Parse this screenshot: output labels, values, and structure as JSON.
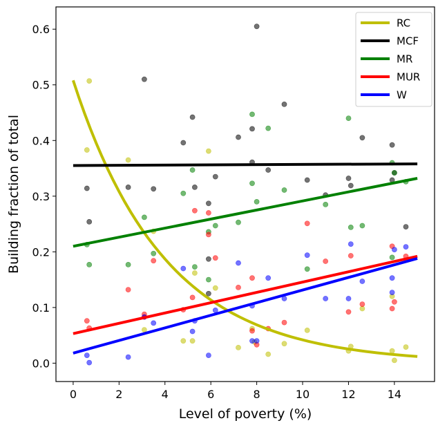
{
  "chart_data": {
    "type": "scatter",
    "title": "",
    "xlabel": "Level of poverty (%)",
    "ylabel": "Building fraction of total",
    "xlim": [
      -0.75,
      15.75
    ],
    "ylim": [
      -0.033,
      0.64
    ],
    "xticks": [
      0,
      2,
      4,
      6,
      8,
      10,
      12,
      14
    ],
    "yticks": [
      0.0,
      0.1,
      0.2,
      0.3,
      0.4,
      0.5,
      0.6
    ],
    "xtick_labels": [
      "0",
      "2",
      "4",
      "6",
      "8",
      "10",
      "12",
      "14"
    ],
    "ytick_labels": [
      "0.0",
      "0.1",
      "0.2",
      "0.3",
      "0.4",
      "0.5",
      "0.6"
    ],
    "legend_position": "top-right",
    "grid": false,
    "series": [
      {
        "name": "RC",
        "color": "#bfbf00",
        "fit": "exponential",
        "fit_start": 0.508,
        "fit_end": 0.012,
        "points": [
          [
            0.7,
            0.507
          ],
          [
            0.6,
            0.383
          ],
          [
            2.4,
            0.365
          ],
          [
            3.5,
            0.237
          ],
          [
            5.3,
            0.162
          ],
          [
            5.9,
            0.381
          ],
          [
            6.2,
            0.135
          ],
          [
            4.8,
            0.04
          ],
          [
            5.2,
            0.04
          ],
          [
            3.1,
            0.06
          ],
          [
            7.2,
            0.028
          ],
          [
            7.8,
            0.062
          ],
          [
            7.9,
            0.038
          ],
          [
            8.5,
            0.016
          ],
          [
            9.2,
            0.035
          ],
          [
            10.2,
            0.059
          ],
          [
            12.0,
            0.022
          ],
          [
            12.1,
            0.03
          ],
          [
            12.6,
            0.098
          ],
          [
            13.9,
            0.022
          ],
          [
            14.0,
            0.005
          ],
          [
            14.5,
            0.029
          ],
          [
            13.9,
            0.12
          ]
        ]
      },
      {
        "name": "MCF",
        "color": "#000000",
        "fit": "linear",
        "fit_start": 0.355,
        "fit_end": 0.358,
        "points": [
          [
            0.6,
            0.314
          ],
          [
            0.7,
            0.254
          ],
          [
            2.4,
            0.316
          ],
          [
            3.1,
            0.51
          ],
          [
            3.5,
            0.313
          ],
          [
            4.8,
            0.396
          ],
          [
            5.2,
            0.442
          ],
          [
            5.3,
            0.316
          ],
          [
            5.9,
            0.287
          ],
          [
            6.2,
            0.335
          ],
          [
            7.2,
            0.406
          ],
          [
            7.8,
            0.361
          ],
          [
            7.8,
            0.421
          ],
          [
            8.0,
            0.605
          ],
          [
            8.5,
            0.347
          ],
          [
            9.2,
            0.465
          ],
          [
            10.2,
            0.329
          ],
          [
            11.0,
            0.302
          ],
          [
            12.0,
            0.332
          ],
          [
            12.1,
            0.319
          ],
          [
            12.6,
            0.405
          ],
          [
            13.9,
            0.392
          ],
          [
            13.9,
            0.329
          ],
          [
            14.0,
            0.342
          ],
          [
            14.5,
            0.245
          ],
          [
            5.9,
            0.187
          ],
          [
            5.9,
            0.125
          ]
        ]
      },
      {
        "name": "MR",
        "color": "#008000",
        "fit": "linear",
        "fit_start": 0.21,
        "fit_end": 0.332,
        "points": [
          [
            0.6,
            0.213
          ],
          [
            0.7,
            0.177
          ],
          [
            2.4,
            0.177
          ],
          [
            3.1,
            0.262
          ],
          [
            3.5,
            0.197
          ],
          [
            4.8,
            0.305
          ],
          [
            5.2,
            0.347
          ],
          [
            5.3,
            0.173
          ],
          [
            5.9,
            0.15
          ],
          [
            5.9,
            0.236
          ],
          [
            6.2,
            0.247
          ],
          [
            7.2,
            0.253
          ],
          [
            7.8,
            0.447
          ],
          [
            7.8,
            0.323
          ],
          [
            8.0,
            0.29
          ],
          [
            8.5,
            0.422
          ],
          [
            9.2,
            0.311
          ],
          [
            10.2,
            0.169
          ],
          [
            11.0,
            0.285
          ],
          [
            12.0,
            0.44
          ],
          [
            12.1,
            0.244
          ],
          [
            12.6,
            0.247
          ],
          [
            13.9,
            0.19
          ],
          [
            14.0,
            0.342
          ],
          [
            14.5,
            0.326
          ],
          [
            13.9,
            0.36
          ]
        ]
      },
      {
        "name": "MUR",
        "color": "#ff0000",
        "fit": "linear",
        "fit_start": 0.053,
        "fit_end": 0.192,
        "points": [
          [
            0.6,
            0.076
          ],
          [
            0.7,
            0.063
          ],
          [
            2.4,
            0.132
          ],
          [
            3.1,
            0.088
          ],
          [
            3.1,
            0.083
          ],
          [
            3.5,
            0.184
          ],
          [
            4.8,
            0.096
          ],
          [
            5.2,
            0.118
          ],
          [
            5.3,
            0.274
          ],
          [
            5.9,
            0.231
          ],
          [
            5.9,
            0.27
          ],
          [
            6.2,
            0.189
          ],
          [
            7.2,
            0.136
          ],
          [
            7.8,
            0.153
          ],
          [
            7.8,
            0.058
          ],
          [
            8.0,
            0.033
          ],
          [
            8.5,
            0.062
          ],
          [
            9.2,
            0.073
          ],
          [
            10.2,
            0.251
          ],
          [
            11.0,
            0.183
          ],
          [
            12.0,
            0.092
          ],
          [
            12.1,
            0.193
          ],
          [
            12.6,
            0.106
          ],
          [
            13.9,
            0.098
          ],
          [
            13.9,
            0.21
          ],
          [
            14.0,
            0.11
          ],
          [
            14.5,
            0.192
          ]
        ]
      },
      {
        "name": "W",
        "color": "#0000ff",
        "fit": "linear",
        "fit_start": 0.018,
        "fit_end": 0.188,
        "points": [
          [
            0.6,
            0.014
          ],
          [
            0.7,
            0.001
          ],
          [
            2.4,
            0.011
          ],
          [
            3.1,
            0.083
          ],
          [
            3.5,
            0.072
          ],
          [
            4.8,
            0.17
          ],
          [
            5.2,
            0.057
          ],
          [
            5.3,
            0.076
          ],
          [
            5.9,
            0.014
          ],
          [
            6.2,
            0.095
          ],
          [
            7.2,
            0.18
          ],
          [
            7.8,
            0.103
          ],
          [
            7.8,
            0.04
          ],
          [
            8.0,
            0.04
          ],
          [
            8.5,
            0.153
          ],
          [
            9.2,
            0.116
          ],
          [
            10.2,
            0.194
          ],
          [
            11.0,
            0.116
          ],
          [
            12.0,
            0.116
          ],
          [
            12.1,
            0.214
          ],
          [
            12.6,
            0.147
          ],
          [
            13.9,
            0.153
          ],
          [
            13.9,
            0.127
          ],
          [
            14.0,
            0.204
          ],
          [
            14.5,
            0.209
          ]
        ]
      }
    ]
  }
}
